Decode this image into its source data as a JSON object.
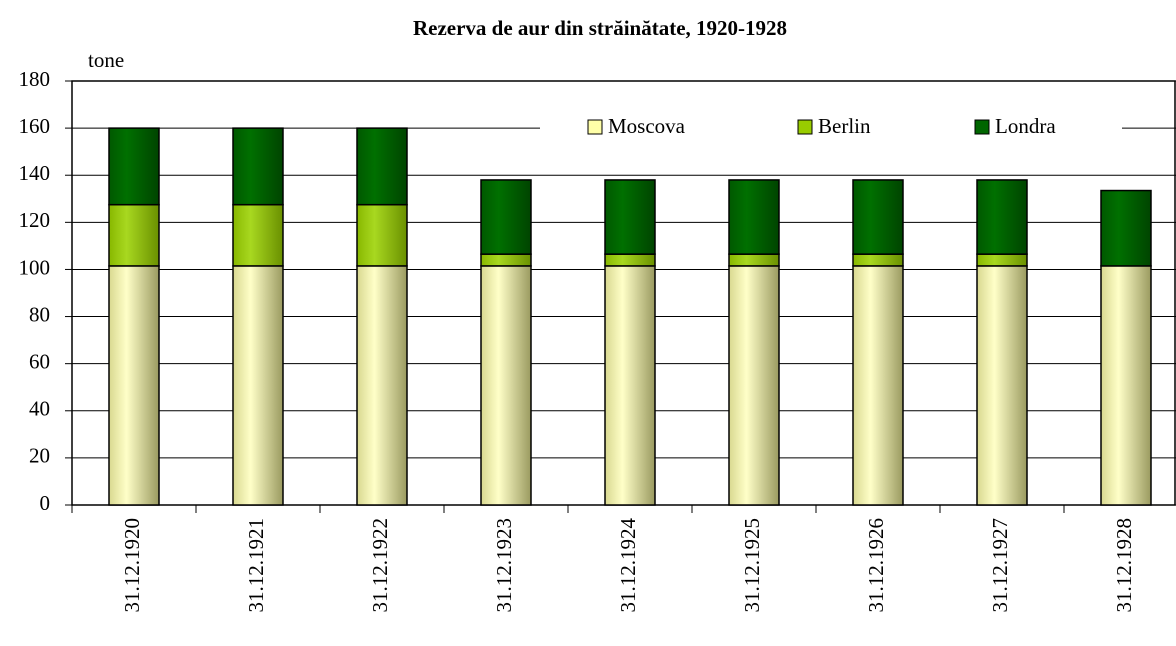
{
  "chart_data": {
    "type": "stacked-bar",
    "title": "Rezerva de aur din străinătate, 1920-1928",
    "y_label": "tone",
    "categories": [
      "31.12.1920",
      "31.12.1921",
      "31.12.1922",
      "31.12.1923",
      "31.12.1924",
      "31.12.1925",
      "31.12.1926",
      "31.12.1927",
      "31.12.1928"
    ],
    "series": [
      {
        "name": "Moscova",
        "color": "#ffffa8",
        "values": [
          101.5,
          101.5,
          101.5,
          101.5,
          101.5,
          101.5,
          101.5,
          101.5,
          101.5
        ]
      },
      {
        "name": "Berlin",
        "color": "#99cc00",
        "values": [
          26,
          26,
          26,
          5,
          5,
          5,
          5,
          5,
          0
        ]
      },
      {
        "name": "Londra",
        "color": "#006600",
        "values": [
          32.5,
          32.5,
          32.5,
          31.5,
          31.5,
          31.5,
          31.5,
          31.5,
          32
        ]
      }
    ],
    "ylim": [
      0,
      180
    ],
    "yticks": [
      0,
      20,
      40,
      60,
      80,
      100,
      120,
      140,
      160,
      180
    ],
    "grid": true,
    "legend": "top-right"
  }
}
